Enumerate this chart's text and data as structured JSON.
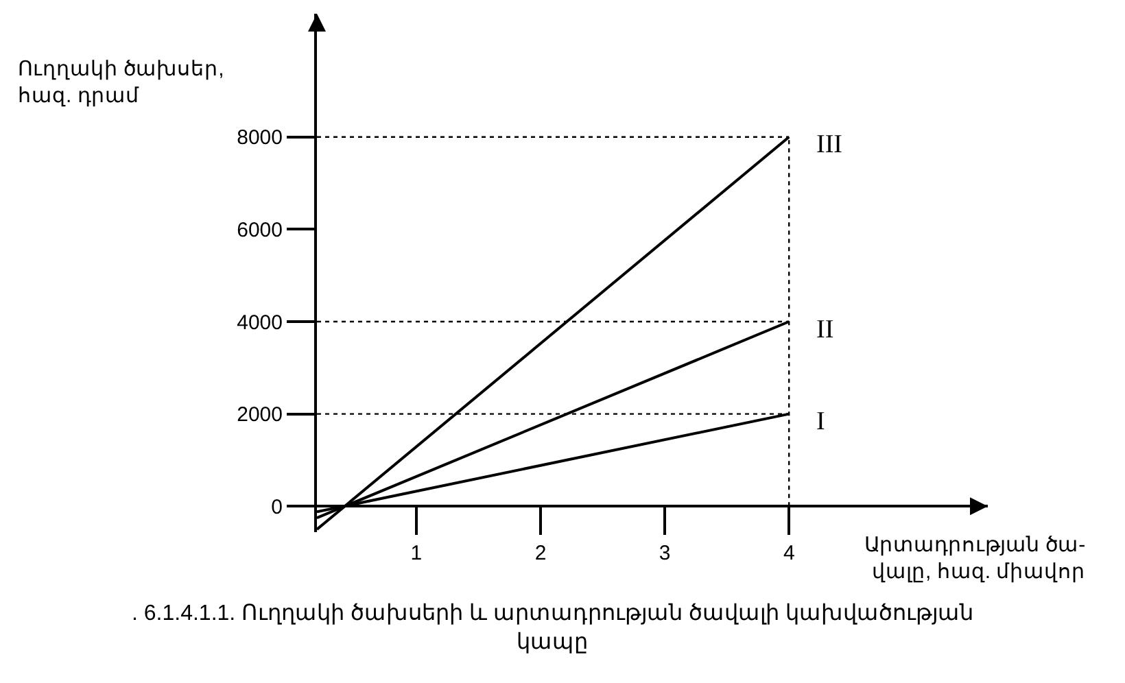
{
  "chart_data": {
    "type": "line",
    "ylabel": "Ուղղակի ծախսեր,\nհազ. դրամ",
    "xlabel": "Արտադրության ծա-\nվալը, հազ. միավոր",
    "annotations": [
      ". 6.1.4.1.1. Ուղղակի ծախսերի և արտադրության ծավալի կախվածության\nկապը"
    ],
    "series": [
      {
        "name": "I",
        "color": "#000000",
        "values": [
          -120,
          2000
        ]
      },
      {
        "name": "II",
        "color": "#000000",
        "values": [
          -250,
          4000
        ]
      },
      {
        "name": "III",
        "color": "#000000",
        "values": [
          -500,
          8000
        ]
      }
    ],
    "x": [
      0.2,
      4
    ],
    "xlim": [
      0.2,
      5.6
    ],
    "ylim": [
      -560,
      10670
    ],
    "xticks": [
      1,
      2,
      3,
      4
    ],
    "yticks": [
      0,
      2000,
      4000,
      6000,
      8000
    ],
    "ref_lines": [
      {
        "axis": "y",
        "value": 2000,
        "line_style": "dotted"
      },
      {
        "axis": "y",
        "value": 4000,
        "line_style": "dotted"
      },
      {
        "axis": "y",
        "value": 8000,
        "line_style": "dotted"
      },
      {
        "axis": "x",
        "value": 4,
        "line_style": "dotted"
      }
    ],
    "grid": false,
    "legend": false,
    "marker": "none",
    "line_style": "solid"
  }
}
